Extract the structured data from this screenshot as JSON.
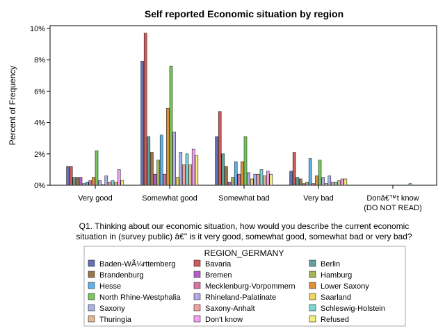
{
  "chart_data": {
    "type": "bar",
    "title": "Self reported Economic situation by region",
    "xlabel": "Q1. Thinking about our economic situation, how would you describe the current economic situation in (survey public) â€\" is it very good, somewhat good, somewhat bad or very bad?",
    "xlabel_lines": [
      "Q1. Thinking about our economic situation, how would you describe the current economic",
      "situation in (survey public) â€\" is it very good, somewhat good, somewhat bad or very bad?"
    ],
    "ylabel": "Percent of Frequency",
    "ylim": [
      0,
      10
    ],
    "yticks": [
      "0%",
      "2%",
      "4%",
      "6%",
      "8%",
      "10%"
    ],
    "grid": false,
    "categories": [
      "Very good",
      "Somewhat good",
      "Somewhat bad",
      "Very bad",
      "Donâ€™t know|(DO NOT READ)"
    ],
    "legend_title": "REGION_GERMANY",
    "legend_position": "bottom",
    "series": [
      {
        "name": "Baden-WÃ¼rttemberg",
        "color": "#6173b4",
        "values": [
          1.2,
          7.9,
          3.1,
          0.9,
          0
        ]
      },
      {
        "name": "Bavaria",
        "color": "#d05b5b",
        "values": [
          1.2,
          9.7,
          4.7,
          2.1,
          0
        ]
      },
      {
        "name": "Berlin",
        "color": "#63a29b",
        "values": [
          0.5,
          3.1,
          2.0,
          0.5,
          0
        ]
      },
      {
        "name": "Brandenburg",
        "color": "#9b7649",
        "values": [
          0.5,
          2.1,
          1.2,
          0.4,
          0
        ]
      },
      {
        "name": "Bremen",
        "color": "#b65fcc",
        "values": [
          0.5,
          0.7,
          0.2,
          0.1,
          0
        ]
      },
      {
        "name": "Hamburg",
        "color": "#a8b454",
        "values": [
          0.1,
          1.6,
          0.5,
          0.2,
          0
        ]
      },
      {
        "name": "Hesse",
        "color": "#5fb2ea",
        "values": [
          0.2,
          3.2,
          1.5,
          1.7,
          0
        ]
      },
      {
        "name": "Mecklenburg-Vorpommern",
        "color": "#d775a7",
        "values": [
          0.3,
          0.7,
          0.7,
          0.1,
          0
        ]
      },
      {
        "name": "Lower Saxony",
        "color": "#e08f3a",
        "values": [
          0.5,
          4.9,
          1.5,
          0.6,
          0
        ]
      },
      {
        "name": "North Rhine-Westphalia",
        "color": "#74cb5a",
        "values": [
          2.2,
          7.6,
          3.1,
          1.6,
          0
        ]
      },
      {
        "name": "Rhineland-Palatinate",
        "color": "#b9a9e8",
        "values": [
          0.3,
          3.4,
          0.8,
          0.5,
          0
        ]
      },
      {
        "name": "Saarland",
        "color": "#eed55e",
        "values": [
          0.05,
          0.5,
          0.4,
          0.1,
          0
        ]
      },
      {
        "name": "Saxony",
        "color": "#a9b3ea",
        "values": [
          0.6,
          2.1,
          0.7,
          0.6,
          0
        ]
      },
      {
        "name": "Saxony-Anhalt",
        "color": "#f2a0a0",
        "values": [
          0.2,
          1.3,
          0.7,
          0.2,
          0
        ]
      },
      {
        "name": "Schleswig-Holstein",
        "color": "#7dd7d3",
        "values": [
          0.3,
          2.0,
          1.0,
          0.2,
          0.1
        ]
      },
      {
        "name": "Thuringia",
        "color": "#e2b98d",
        "values": [
          0.2,
          1.3,
          0.6,
          0.3,
          0
        ]
      },
      {
        "name": "Don't know",
        "color": "#f6a0f4",
        "values": [
          1.0,
          2.3,
          0.9,
          0.4,
          0
        ]
      },
      {
        "name": "Refused",
        "color": "#f4f07a",
        "values": [
          0.3,
          1.9,
          0.7,
          0.4,
          0
        ]
      }
    ]
  }
}
